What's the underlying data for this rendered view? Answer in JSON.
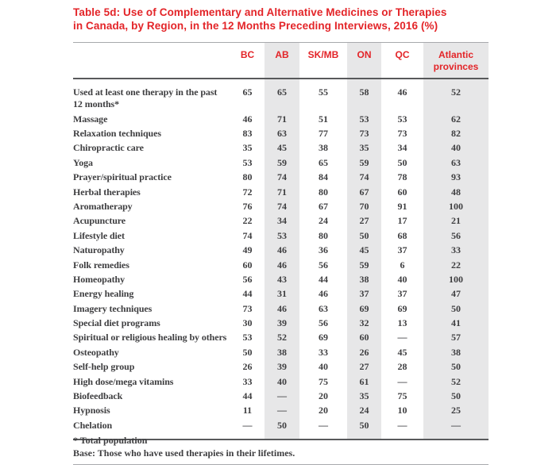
{
  "title": {
    "line1": "Table 5d: Use of Complementary and Alternative Medicines or Therapies",
    "line2": "in Canada, by Region, in the 12 Months Preceding Interviews, 2016 (%)"
  },
  "colors": {
    "accent_red": "#e32428",
    "band_grey": "#e7e7e8",
    "text_dark": "#3e3e40",
    "rule_dark": "#58595b",
    "rule_light": "#a7a9ac"
  },
  "table": {
    "columns": [
      "BC",
      "AB",
      "SK/MB",
      "ON",
      "QC",
      "Atlantic provinces"
    ],
    "shaded_columns": [
      "AB",
      "ON",
      "Atlantic provinces"
    ],
    "rows": [
      {
        "label": "Used at least one therapy in the past 12 months*",
        "values": [
          "65",
          "65",
          "55",
          "58",
          "46",
          "52"
        ]
      },
      {
        "label": "Massage",
        "values": [
          "46",
          "71",
          "51",
          "53",
          "53",
          "62"
        ]
      },
      {
        "label": "Relaxation techniques",
        "values": [
          "83",
          "63",
          "77",
          "73",
          "73",
          "82"
        ]
      },
      {
        "label": "Chiropractic care",
        "values": [
          "35",
          "45",
          "38",
          "35",
          "34",
          "40"
        ]
      },
      {
        "label": "Yoga",
        "values": [
          "53",
          "59",
          "65",
          "59",
          "50",
          "63"
        ]
      },
      {
        "label": "Prayer/spiritual practice",
        "values": [
          "80",
          "74",
          "84",
          "74",
          "78",
          "93"
        ]
      },
      {
        "label": "Herbal therapies",
        "values": [
          "72",
          "71",
          "80",
          "67",
          "60",
          "48"
        ]
      },
      {
        "label": "Aromatherapy",
        "values": [
          "76",
          "74",
          "67",
          "70",
          "91",
          "100"
        ]
      },
      {
        "label": "Acupuncture",
        "values": [
          "22",
          "34",
          "24",
          "27",
          "17",
          "21"
        ]
      },
      {
        "label": "Lifestyle diet",
        "values": [
          "74",
          "53",
          "80",
          "50",
          "68",
          "56"
        ]
      },
      {
        "label": "Naturopathy",
        "values": [
          "49",
          "46",
          "36",
          "45",
          "37",
          "33"
        ]
      },
      {
        "label": "Folk remedies",
        "values": [
          "60",
          "46",
          "56",
          "59",
          "6",
          "22"
        ]
      },
      {
        "label": "Homeopathy",
        "values": [
          "56",
          "43",
          "44",
          "38",
          "40",
          "100"
        ]
      },
      {
        "label": "Energy healing",
        "values": [
          "44",
          "31",
          "46",
          "37",
          "37",
          "47"
        ]
      },
      {
        "label": "Imagery techniques",
        "values": [
          "73",
          "46",
          "63",
          "69",
          "69",
          "50"
        ]
      },
      {
        "label": "Special diet programs",
        "values": [
          "30",
          "39",
          "56",
          "32",
          "13",
          "41"
        ]
      },
      {
        "label": "Spiritual or religious healing by others",
        "values": [
          "53",
          "52",
          "69",
          "60",
          "—",
          "57"
        ]
      },
      {
        "label": "Osteopathy",
        "values": [
          "50",
          "38",
          "33",
          "26",
          "45",
          "38"
        ]
      },
      {
        "label": "Self-help group",
        "values": [
          "26",
          "39",
          "40",
          "27",
          "28",
          "50"
        ]
      },
      {
        "label": "High dose/mega vitamins",
        "values": [
          "33",
          "40",
          "75",
          "61",
          "—",
          "52"
        ]
      },
      {
        "label": "Biofeedback",
        "values": [
          "44",
          "—",
          "20",
          "35",
          "75",
          "50"
        ]
      },
      {
        "label": "Hypnosis",
        "values": [
          "11",
          "—",
          "20",
          "24",
          "10",
          "25"
        ]
      },
      {
        "label": "Chelation",
        "values": [
          "—",
          "50",
          "—",
          "50",
          "—",
          "—"
        ]
      }
    ]
  },
  "footnotes": [
    "* Total population",
    "Base: Those who have used therapies in their lifetimes."
  ]
}
